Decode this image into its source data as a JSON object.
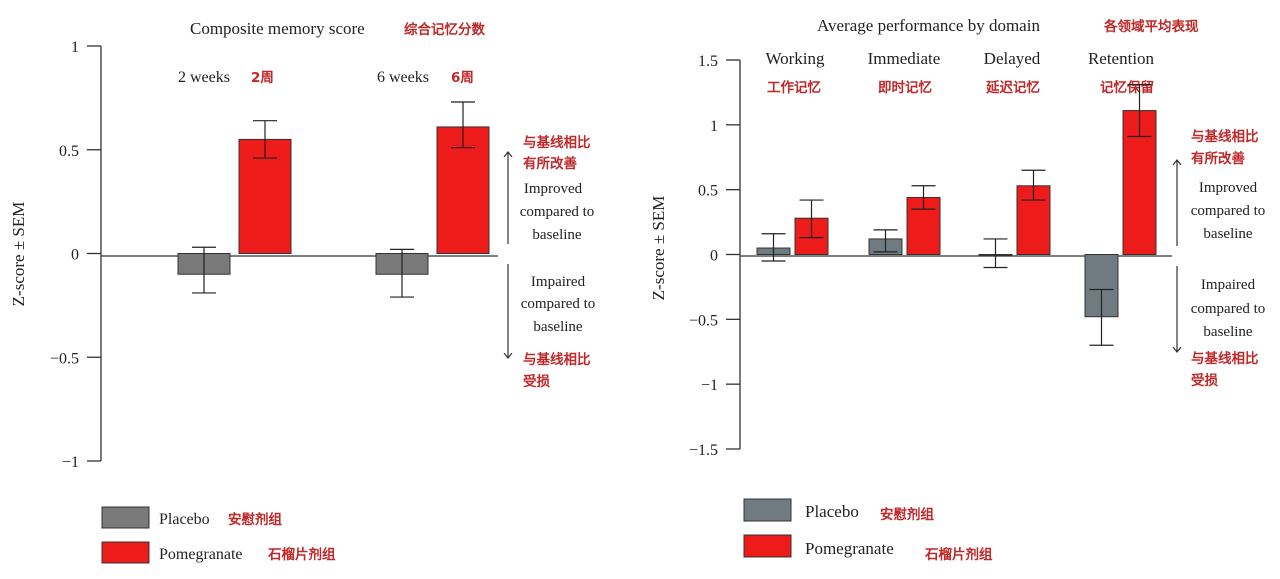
{
  "colors": {
    "placebo": "#7a7a7a",
    "pomegranate": "#ee1b1b",
    "annotation": "#c0282a"
  },
  "chart_data": [
    {
      "type": "bar",
      "title": "Composite memory score",
      "title_cn": "综合记忆分数",
      "ylabel": "Z-score ± SEM",
      "ylim": [
        -1,
        1
      ],
      "yticks": [
        "1",
        "0.5",
        "0",
        "−0.5",
        "−1"
      ],
      "categories": [
        {
          "label": "2 weeks",
          "label_cn": "2周"
        },
        {
          "label": "6 weeks",
          "label_cn": "6周"
        }
      ],
      "series": [
        {
          "name": "Placebo",
          "name_cn": "安慰剂组",
          "values": [
            -0.1,
            -0.1
          ],
          "err_low": [
            -0.19,
            -0.21
          ],
          "err_high": [
            0.03,
            0.02
          ]
        },
        {
          "name": "Pomegranate",
          "name_cn": "石榴片剂组",
          "values": [
            0.55,
            0.61
          ],
          "err_low": [
            0.46,
            0.51
          ],
          "err_high": [
            0.64,
            0.73
          ]
        }
      ],
      "annotations": {
        "improved": {
          "cn1": "与基线相比",
          "cn2": "有所改善",
          "l1": "Improved",
          "l2": "compared to",
          "l3": "baseline"
        },
        "impaired": {
          "l1": "Impaired",
          "l2": "compared to",
          "l3": "baseline",
          "cn1": "与基线相比",
          "cn2": "受损"
        }
      },
      "legend": "bottom-left"
    },
    {
      "type": "bar",
      "title": "Average performance by domain",
      "title_cn": "各领域平均表现",
      "ylabel": "Z-score ± SEM",
      "ylim": [
        -1.5,
        1.5
      ],
      "yticks": [
        "1.5",
        "1",
        "0.5",
        "0",
        "−0.5",
        "−1",
        "−1.5"
      ],
      "categories": [
        {
          "label": "Working",
          "label_cn": "工作记忆"
        },
        {
          "label": "Immediate",
          "label_cn": "即时记忆"
        },
        {
          "label": "Delayed",
          "label_cn": "延迟记忆"
        },
        {
          "label": "Retention",
          "label_cn": "记忆保留"
        }
      ],
      "series": [
        {
          "name": "Placebo",
          "name_cn": "安慰剂组",
          "values": [
            0.05,
            0.12,
            0,
            -0.48
          ],
          "err_low": [
            -0.05,
            0.02,
            -0.1,
            -0.7
          ],
          "err_high": [
            0.16,
            0.19,
            0.12,
            -0.27
          ]
        },
        {
          "name": "Pomegranate",
          "name_cn": "石榴片剂组",
          "values": [
            0.28,
            0.44,
            0.53,
            1.11
          ],
          "err_low": [
            0.13,
            0.35,
            0.42,
            0.91
          ],
          "err_high": [
            0.42,
            0.53,
            0.65,
            1.31
          ]
        }
      ],
      "annotations": {
        "improved": {
          "cn1": "与基线相比",
          "cn2": "有所改善",
          "l1": "Improved",
          "l2": "compared to",
          "l3": "baseline"
        },
        "impaired": {
          "l1": "Impaired",
          "l2": "compared to",
          "l3": "baseline",
          "cn1": "与基线相比",
          "cn2": "受损"
        }
      },
      "legend": "bottom-left"
    }
  ]
}
